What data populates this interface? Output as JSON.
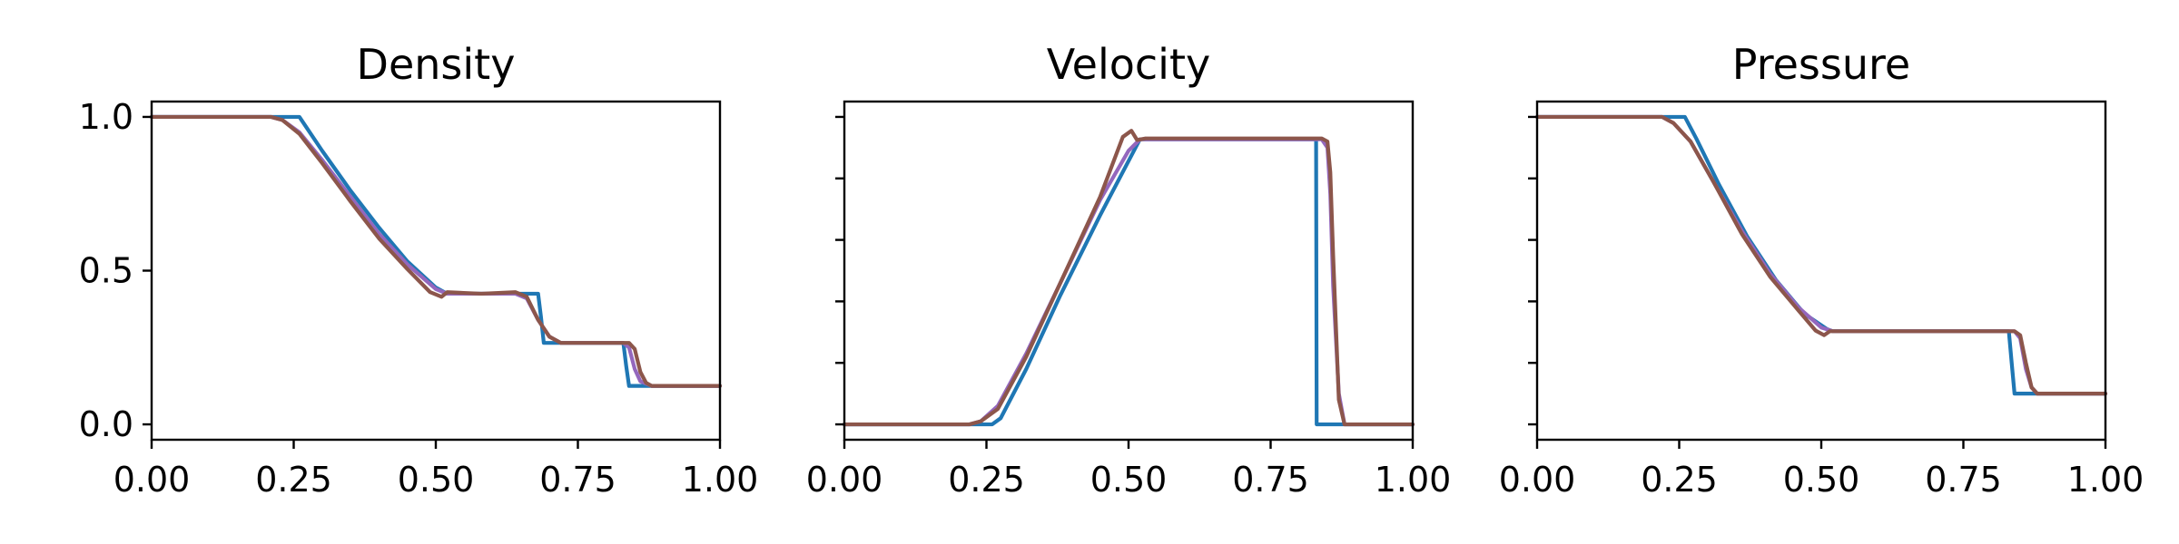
{
  "chart_data": [
    {
      "type": "line",
      "title": "Density",
      "xlim": [
        0,
        1
      ],
      "ylim": [
        -0.05,
        1.05
      ],
      "xticks": [
        "0.00",
        "0.25",
        "0.50",
        "0.75",
        "1.00"
      ],
      "xtick_values": [
        0,
        0.25,
        0.5,
        0.75,
        1.0
      ],
      "yticks": [
        "0.0",
        "0.5",
        "1.0"
      ],
      "ytick_values": [
        0,
        0.5,
        1.0
      ],
      "series": [
        {
          "color": "#1f77b4",
          "x": [
            0,
            0.26,
            0.3,
            0.35,
            0.4,
            0.45,
            0.5,
            0.52,
            0.68,
            0.685,
            0.69,
            0.83,
            0.835,
            0.84,
            1.0
          ],
          "y": [
            1.0,
            1.0,
            0.89,
            0.76,
            0.64,
            0.53,
            0.445,
            0.425,
            0.425,
            0.35,
            0.265,
            0.265,
            0.19,
            0.125,
            0.125
          ]
        },
        {
          "color": "#9467bd",
          "x": [
            0,
            0.21,
            0.23,
            0.26,
            0.3,
            0.35,
            0.4,
            0.45,
            0.5,
            0.52,
            0.64,
            0.66,
            0.68,
            0.7,
            0.72,
            0.83,
            0.84,
            0.85,
            0.86,
            0.88,
            1.0
          ],
          "y": [
            1.0,
            1.0,
            0.99,
            0.95,
            0.86,
            0.74,
            0.62,
            0.52,
            0.44,
            0.425,
            0.425,
            0.41,
            0.34,
            0.285,
            0.265,
            0.265,
            0.25,
            0.18,
            0.14,
            0.125,
            0.125
          ]
        },
        {
          "color": "#8c564b",
          "x": [
            0,
            0.21,
            0.23,
            0.26,
            0.3,
            0.35,
            0.4,
            0.45,
            0.49,
            0.51,
            0.52,
            0.58,
            0.64,
            0.66,
            0.68,
            0.7,
            0.72,
            0.84,
            0.85,
            0.86,
            0.87,
            0.88,
            1.0
          ],
          "y": [
            1.0,
            1.0,
            0.99,
            0.945,
            0.85,
            0.725,
            0.605,
            0.505,
            0.43,
            0.415,
            0.43,
            0.425,
            0.43,
            0.415,
            0.34,
            0.285,
            0.265,
            0.265,
            0.245,
            0.17,
            0.135,
            0.125,
            0.125
          ]
        }
      ]
    },
    {
      "type": "line",
      "title": "Velocity",
      "xlim": [
        0,
        1
      ],
      "ylim": [
        -0.05,
        1.05
      ],
      "xticks": [
        "0.00",
        "0.25",
        "0.50",
        "0.75",
        "1.00"
      ],
      "xtick_values": [
        0,
        0.25,
        0.5,
        0.75,
        1.0
      ],
      "yticks": [
        "",
        "",
        "",
        "",
        "",
        ""
      ],
      "ytick_values": [
        0,
        0.2,
        0.4,
        0.6,
        0.8,
        1.0
      ],
      "series": [
        {
          "color": "#1f77b4",
          "x": [
            0,
            0.26,
            0.275,
            0.32,
            0.38,
            0.45,
            0.52,
            0.83,
            0.831,
            1.0
          ],
          "y": [
            0,
            0,
            0.02,
            0.18,
            0.42,
            0.68,
            0.927,
            0.927,
            0.0,
            0.0
          ]
        },
        {
          "color": "#9467bd",
          "x": [
            0,
            0.22,
            0.24,
            0.27,
            0.32,
            0.38,
            0.45,
            0.5,
            0.52,
            0.84,
            0.85,
            0.855,
            0.86,
            0.87,
            0.88,
            1.0
          ],
          "y": [
            0,
            0,
            0.01,
            0.06,
            0.23,
            0.46,
            0.73,
            0.89,
            0.927,
            0.927,
            0.9,
            0.75,
            0.45,
            0.1,
            0.0,
            0.0
          ]
        },
        {
          "color": "#8c564b",
          "x": [
            0,
            0.22,
            0.24,
            0.27,
            0.32,
            0.38,
            0.45,
            0.49,
            0.505,
            0.515,
            0.53,
            0.84,
            0.85,
            0.855,
            0.86,
            0.87,
            0.88,
            1.0
          ],
          "y": [
            0,
            0,
            0.01,
            0.05,
            0.22,
            0.46,
            0.74,
            0.935,
            0.955,
            0.925,
            0.93,
            0.93,
            0.92,
            0.82,
            0.55,
            0.08,
            0.0,
            0.0
          ]
        }
      ]
    },
    {
      "type": "line",
      "title": "Pressure",
      "xlim": [
        0,
        1
      ],
      "ylim": [
        -0.05,
        1.05
      ],
      "xticks": [
        "0.00",
        "0.25",
        "0.50",
        "0.75",
        "1.00"
      ],
      "xtick_values": [
        0,
        0.25,
        0.5,
        0.75,
        1.0
      ],
      "yticks": [
        "",
        "",
        "",
        "",
        "",
        ""
      ],
      "ytick_values": [
        0,
        0.2,
        0.4,
        0.6,
        0.8,
        1.0
      ],
      "series": [
        {
          "color": "#1f77b4",
          "x": [
            0,
            0.26,
            0.28,
            0.32,
            0.37,
            0.42,
            0.47,
            0.51,
            0.52,
            0.83,
            0.835,
            0.84,
            1.0
          ],
          "y": [
            1.0,
            1.0,
            0.93,
            0.78,
            0.61,
            0.47,
            0.36,
            0.31,
            0.303,
            0.303,
            0.2,
            0.1,
            0.1
          ]
        },
        {
          "color": "#9467bd",
          "x": [
            0,
            0.22,
            0.24,
            0.27,
            0.31,
            0.36,
            0.41,
            0.46,
            0.5,
            0.52,
            0.84,
            0.85,
            0.86,
            0.87,
            0.88,
            1.0
          ],
          "y": [
            1.0,
            1.0,
            0.98,
            0.92,
            0.79,
            0.63,
            0.49,
            0.38,
            0.315,
            0.303,
            0.303,
            0.28,
            0.18,
            0.12,
            0.1,
            0.1
          ]
        },
        {
          "color": "#8c564b",
          "x": [
            0,
            0.22,
            0.24,
            0.27,
            0.31,
            0.36,
            0.41,
            0.46,
            0.49,
            0.505,
            0.515,
            0.84,
            0.85,
            0.86,
            0.87,
            0.88,
            1.0
          ],
          "y": [
            1.0,
            1.0,
            0.98,
            0.92,
            0.79,
            0.62,
            0.48,
            0.37,
            0.305,
            0.29,
            0.303,
            0.303,
            0.29,
            0.2,
            0.12,
            0.1,
            0.1
          ]
        }
      ]
    }
  ]
}
